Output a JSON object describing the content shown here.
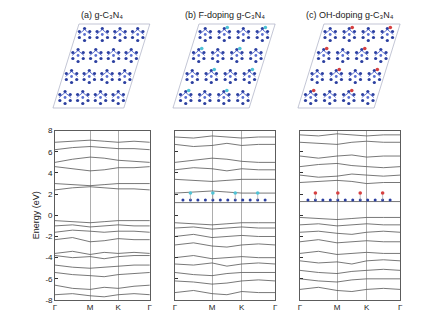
{
  "chart_data": [
    {
      "type": "line",
      "title": "(a) g-C₃N₄",
      "ylabel": "Energy (eV)",
      "color": "#555555",
      "grid": true,
      "xlim": [
        0,
        2.7
      ],
      "xticks": [
        {
          "value": 0,
          "label": "Γ"
        },
        {
          "value": 1,
          "label": "M"
        },
        {
          "value": 1.8,
          "label": "K"
        },
        {
          "value": 2.7,
          "label": "Γ"
        }
      ],
      "ylim": [
        -8,
        8
      ],
      "yticks": [
        -8,
        -6,
        -4,
        -2,
        0,
        2,
        4,
        6,
        8
      ],
      "x": [
        0,
        0.5,
        1,
        1.4,
        1.8,
        2.25,
        2.7
      ],
      "bands": [
        [
          6.9,
          7.0,
          7.1,
          7.0,
          6.9,
          7.0,
          6.9
        ],
        [
          6.2,
          6.4,
          6.5,
          6.4,
          6.3,
          6.3,
          6.2
        ],
        [
          5.0,
          5.3,
          5.5,
          5.4,
          5.2,
          5.1,
          5.0
        ],
        [
          4.6,
          4.4,
          4.2,
          4.3,
          4.5,
          4.5,
          4.6
        ],
        [
          3.0,
          2.9,
          2.8,
          2.9,
          3.0,
          3.0,
          3.0
        ],
        [
          2.4,
          2.6,
          2.7,
          2.6,
          2.5,
          2.5,
          2.4
        ],
        [
          -0.5,
          -0.6,
          -0.7,
          -0.6,
          -0.5,
          -0.5,
          -0.5
        ],
        [
          -1.0,
          -0.9,
          -1.1,
          -1.0,
          -0.9,
          -1.0,
          -1.0
        ],
        [
          -1.6,
          -1.4,
          -1.5,
          -1.6,
          -1.5,
          -1.5,
          -1.6
        ],
        [
          -2.3,
          -2.1,
          -2.5,
          -2.4,
          -2.2,
          -2.3,
          -2.3
        ],
        [
          -3.6,
          -3.4,
          -3.7,
          -3.5,
          -3.6,
          -3.5,
          -3.6
        ],
        [
          -3.8,
          -4.0,
          -3.9,
          -4.1,
          -3.9,
          -3.8,
          -3.8
        ],
        [
          -4.7,
          -4.9,
          -5.0,
          -4.9,
          -4.8,
          -4.7,
          -4.7
        ],
        [
          -5.4,
          -5.6,
          -5.7,
          -5.8,
          -5.6,
          -5.5,
          -5.4
        ],
        [
          -6.6,
          -6.9,
          -7.0,
          -6.8,
          -6.9,
          -6.7,
          -6.6
        ],
        [
          -7.5,
          -7.4,
          -7.6,
          -7.7,
          -7.5,
          -7.4,
          -7.5
        ]
      ]
    },
    {
      "type": "line",
      "title": "(b) F-doping g-C₃N₄",
      "color": "#555555",
      "grid": true,
      "tick_labels": "x",
      "xlim": [
        0,
        2.7
      ],
      "xticks": [
        {
          "value": 0,
          "label": "Γ"
        },
        {
          "value": 1,
          "label": "M"
        },
        {
          "value": 1.8,
          "label": "K"
        },
        {
          "value": 2.7,
          "label": "Γ"
        }
      ],
      "ylim": [
        -8,
        8
      ],
      "yticks": [
        -8,
        -6,
        -4,
        -2,
        0,
        2,
        4,
        6,
        8
      ],
      "x": [
        0,
        0.5,
        1,
        1.4,
        1.8,
        2.25,
        2.7
      ],
      "bands": [
        [
          7.4,
          7.3,
          7.5,
          7.4,
          7.3,
          7.4,
          7.4
        ],
        [
          6.7,
          6.5,
          6.6,
          6.8,
          6.6,
          6.7,
          6.7
        ],
        [
          5.0,
          5.2,
          5.4,
          5.3,
          5.1,
          5.0,
          5.0
        ],
        [
          4.3,
          4.5,
          4.4,
          4.2,
          4.4,
          4.3,
          4.3
        ],
        [
          3.4,
          3.3,
          3.2,
          3.3,
          3.4,
          3.4,
          3.4
        ],
        [
          2.1,
          2.2,
          2.3,
          2.2,
          2.1,
          2.1,
          2.1
        ],
        [
          1.2,
          1.2,
          1.2,
          1.2,
          1.2,
          1.2,
          1.2
        ],
        [
          -0.7,
          -0.8,
          -0.9,
          -0.8,
          -0.7,
          -0.7,
          -0.7
        ],
        [
          -1.2,
          -1.1,
          -1.3,
          -1.2,
          -1.1,
          -1.2,
          -1.2
        ],
        [
          -2.0,
          -1.8,
          -2.1,
          -2.0,
          -1.9,
          -2.0,
          -2.0
        ],
        [
          -2.8,
          -2.6,
          -2.9,
          -3.0,
          -2.8,
          -2.7,
          -2.8
        ],
        [
          -4.0,
          -3.8,
          -4.1,
          -4.0,
          -3.9,
          -4.0,
          -4.0
        ],
        [
          -4.6,
          -4.7,
          -4.5,
          -4.8,
          -4.6,
          -4.5,
          -4.6
        ],
        [
          -5.4,
          -5.6,
          -5.7,
          -5.5,
          -5.4,
          -5.4,
          -5.4
        ],
        [
          -6.2,
          -6.3,
          -6.5,
          -6.4,
          -6.2,
          -6.1,
          -6.2
        ],
        [
          -7.3,
          -7.1,
          -7.4,
          -7.5,
          -7.2,
          -7.3,
          -7.3
        ]
      ]
    },
    {
      "type": "line",
      "title": "(c) OH-doping g-C₃N₄",
      "color": "#555555",
      "grid": true,
      "tick_labels": "x",
      "xlim": [
        0,
        2.7
      ],
      "xticks": [
        {
          "value": 0,
          "label": "Γ"
        },
        {
          "value": 1,
          "label": "M"
        },
        {
          "value": 1.8,
          "label": "K"
        },
        {
          "value": 2.7,
          "label": "Γ"
        }
      ],
      "ylim": [
        -8,
        8
      ],
      "yticks": [
        -8,
        -6,
        -4,
        -2,
        0,
        2,
        4,
        6,
        8
      ],
      "x": [
        0,
        0.5,
        1,
        1.4,
        1.8,
        2.25,
        2.7
      ],
      "bands": [
        [
          7.6,
          7.5,
          7.7,
          7.6,
          7.5,
          7.6,
          7.6
        ],
        [
          6.9,
          6.8,
          6.7,
          6.9,
          7.0,
          6.9,
          6.9
        ],
        [
          5.6,
          5.4,
          5.6,
          5.7,
          5.5,
          5.6,
          5.6
        ],
        [
          4.6,
          4.8,
          4.9,
          4.7,
          4.6,
          4.5,
          4.6
        ],
        [
          3.8,
          3.6,
          3.7,
          3.9,
          3.8,
          3.7,
          3.8
        ],
        [
          3.1,
          3.2,
          3.3,
          3.2,
          3.0,
          3.1,
          3.1
        ],
        [
          1.3,
          1.3,
          1.3,
          1.3,
          1.3,
          1.3,
          1.3
        ],
        [
          -0.2,
          -0.3,
          -0.4,
          -0.3,
          -0.2,
          -0.2,
          -0.2
        ],
        [
          -0.9,
          -0.8,
          -1.0,
          -0.9,
          -0.8,
          -0.9,
          -0.9
        ],
        [
          -1.6,
          -1.5,
          -1.7,
          -1.8,
          -1.6,
          -1.5,
          -1.6
        ],
        [
          -2.5,
          -2.3,
          -2.6,
          -2.5,
          -2.4,
          -2.5,
          -2.5
        ],
        [
          -3.6,
          -3.4,
          -3.7,
          -3.6,
          -3.5,
          -3.6,
          -3.6
        ],
        [
          -4.3,
          -4.5,
          -4.4,
          -4.6,
          -4.3,
          -4.2,
          -4.3
        ],
        [
          -5.2,
          -5.4,
          -5.5,
          -5.3,
          -5.2,
          -5.1,
          -5.2
        ],
        [
          -6.0,
          -6.2,
          -6.3,
          -6.1,
          -6.0,
          -6.0,
          -6.0
        ],
        [
          -7.0,
          -6.8,
          -7.1,
          -7.2,
          -7.0,
          -6.9,
          -7.0
        ]
      ]
    }
  ]
}
